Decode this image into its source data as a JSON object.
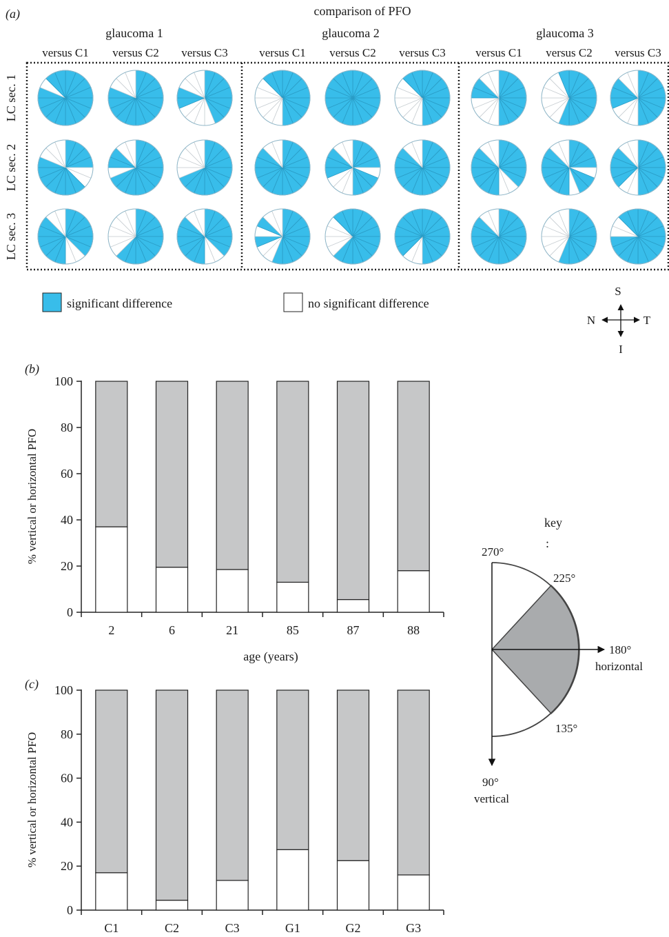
{
  "panel_a": {
    "label": "(a)",
    "title": "comparison of PFO",
    "groups": [
      "glaucoma 1",
      "glaucoma 2",
      "glaucoma 3"
    ],
    "columns": [
      "versus C1",
      "versus C2",
      "versus C3"
    ],
    "rows": [
      "LC sec. 1",
      "LC sec. 2",
      "LC sec. 3"
    ],
    "sectors_per_pie": 16,
    "legend": {
      "significant": "significant difference",
      "not_significant": "no significant difference"
    },
    "compass": {
      "up": "S",
      "left": "N",
      "right": "T",
      "down": "I"
    },
    "colors": {
      "significant": "#38bdea",
      "not_significant": "#ffffff",
      "sector_line": "#9aa7b0"
    }
  },
  "key": {
    "title": "key",
    "colon": ":",
    "labels": [
      "270°",
      "225°",
      "180°",
      "horizontal",
      "135°",
      "90°",
      "vertical"
    ],
    "colors": {
      "shade": "#a9abad"
    }
  },
  "chart_data": [
    {
      "panel": "(b)",
      "type": "bar",
      "stacked": true,
      "categories": [
        "2",
        "6",
        "21",
        "85",
        "87",
        "88"
      ],
      "series": [
        {
          "values": [
            37,
            19.5,
            18.5,
            13,
            5.5,
            18
          ],
          "color": "#ffffff"
        },
        {
          "values": [
            63,
            80.5,
            81.5,
            87,
            94.5,
            82
          ],
          "color": "#c6c7c8"
        }
      ],
      "xlabel": "age (years)",
      "ylabel": "% vertical or horizontal PFO",
      "ylim": [
        0,
        100
      ],
      "yticks": [
        "0",
        "20",
        "40",
        "60",
        "80",
        "100"
      ],
      "grid": false
    },
    {
      "panel": "(c)",
      "type": "bar",
      "stacked": true,
      "categories": [
        "C1",
        "C2",
        "C3",
        "G1",
        "G2",
        "G3"
      ],
      "series": [
        {
          "values": [
            17,
            4.5,
            13.5,
            27.5,
            22.5,
            16
          ],
          "color": "#ffffff"
        },
        {
          "values": [
            83,
            95.5,
            86.5,
            72.5,
            77.5,
            84
          ],
          "color": "#c6c7c8"
        }
      ],
      "xlabel": "",
      "ylabel": "% vertical or horizontal PFO",
      "ylim": [
        0,
        100
      ],
      "yticks": [
        "0",
        "20",
        "40",
        "60",
        "80",
        "100"
      ],
      "grid": false
    }
  ]
}
